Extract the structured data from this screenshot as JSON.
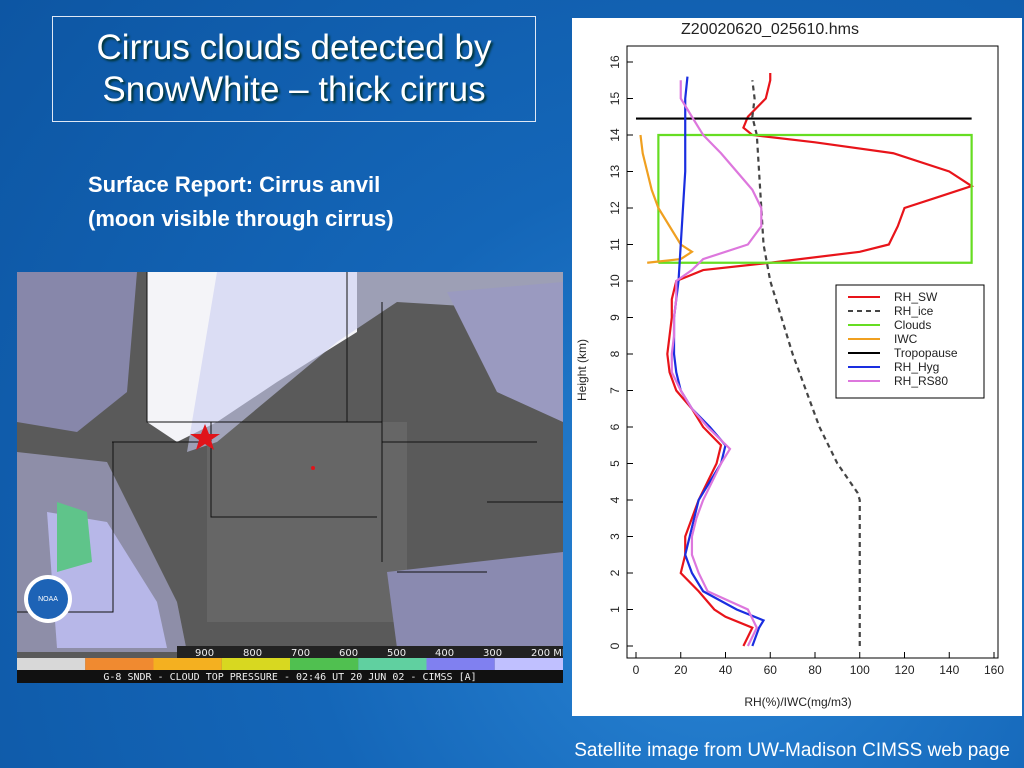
{
  "slide": {
    "title": "Cirrus clouds detected by SnowWhite – thick cirrus",
    "subtitle": [
      "Surface Report: Cirrus anvil",
      "(moon visible through cirrus)"
    ],
    "footer": "Satellite image from UW-Madison CIMSS web page"
  },
  "satellite": {
    "logo": "NOAA",
    "scale_labels": [
      "900",
      "800",
      "700",
      "600",
      "500",
      "400",
      "300",
      "200 MB"
    ],
    "scale_colors": [
      "#d8d8d8",
      "#f08a30",
      "#f4b020",
      "#d8d820",
      "#50c050",
      "#60d0a0",
      "#8080f0",
      "#c0c0ff"
    ],
    "caption": "G-8 SNDR - CLOUD TOP PRESSURE - 02:46 UT 20 JUN 02 - CIMSS [A]"
  },
  "chart_data": {
    "type": "line",
    "title": "Z20020620_025610.hms",
    "xlabel": "RH(%)/IWC(mg/m3)",
    "ylabel": "Height (km)",
    "xlim": [
      0,
      160
    ],
    "ylim": [
      0,
      16
    ],
    "xticks": [
      0,
      20,
      40,
      60,
      80,
      100,
      120,
      140,
      160
    ],
    "yticks": [
      0,
      1,
      2,
      3,
      4,
      5,
      6,
      7,
      8,
      9,
      10,
      11,
      12,
      13,
      14,
      15,
      16
    ],
    "legend": "center right",
    "series": [
      {
        "name": "RH_SW",
        "color": "#e8141a",
        "dash": false,
        "x": [
          48,
          52,
          40,
          35,
          28,
          20,
          22,
          22,
          25,
          28,
          32,
          36,
          38,
          30,
          25,
          18,
          15,
          14,
          15,
          16,
          16,
          18,
          30,
          60,
          100,
          113,
          117,
          120,
          135,
          150,
          140,
          115,
          80,
          52,
          48,
          50,
          58,
          60,
          60
        ],
        "y": [
          0,
          0.5,
          0.8,
          1,
          1.5,
          2,
          2.5,
          3,
          3.5,
          4,
          4.5,
          5,
          5.5,
          6,
          6.5,
          7,
          7.5,
          8,
          8.5,
          9,
          9.5,
          10,
          10.3,
          10.5,
          10.8,
          11,
          11.5,
          12,
          12.3,
          12.6,
          13,
          13.5,
          13.8,
          14,
          14.2,
          14.5,
          15,
          15.5,
          15.7
        ]
      },
      {
        "name": "RH_ice",
        "color": "#444444",
        "dash": true,
        "x": [
          100,
          100,
          100,
          100,
          100,
          99,
          90,
          82,
          76,
          70,
          65,
          60,
          57,
          56,
          55,
          54,
          52,
          53,
          52
        ],
        "y": [
          0,
          1,
          2,
          3,
          4,
          4.2,
          5,
          6,
          7,
          8,
          9,
          10,
          11,
          12,
          13,
          14,
          14.5,
          15,
          15.5
        ]
      },
      {
        "name": "Clouds",
        "color": "#66dd22",
        "dash": false,
        "x": [
          10,
          150,
          150,
          10,
          10
        ],
        "y": [
          10.5,
          10.5,
          14,
          14,
          10.5
        ]
      },
      {
        "name": "IWC",
        "color": "#f0a020",
        "dash": false,
        "x": [
          5,
          20,
          25,
          20,
          15,
          10,
          7,
          5,
          3,
          2
        ],
        "y": [
          10.5,
          10.6,
          10.8,
          11,
          11.5,
          12,
          12.5,
          13,
          13.5,
          14
        ]
      },
      {
        "name": "Tropopause",
        "color": "#000000",
        "dash": false,
        "x": [
          0,
          150
        ],
        "y": [
          14.45,
          14.45
        ]
      },
      {
        "name": "RH_Hyg",
        "color": "#1a2ee0",
        "dash": false,
        "x": [
          52,
          55,
          57,
          45,
          30,
          25,
          22,
          24,
          26,
          28,
          33,
          38,
          40,
          33,
          25,
          20,
          18,
          17,
          17,
          17,
          18,
          19,
          20,
          21,
          22,
          22,
          22,
          23
        ],
        "y": [
          0,
          0.5,
          0.7,
          1,
          1.5,
          2,
          2.5,
          3,
          3.5,
          4,
          4.5,
          5,
          5.5,
          6,
          6.5,
          7,
          7.5,
          8,
          8.5,
          9,
          9.5,
          10,
          11,
          12,
          13,
          14,
          15,
          15.6
        ]
      },
      {
        "name": "RH_RS80",
        "color": "#dd77dd",
        "dash": false,
        "x": [
          50,
          54,
          50,
          32,
          28,
          25,
          25,
          27,
          30,
          34,
          38,
          42,
          32,
          25,
          20,
          16,
          16,
          17,
          17,
          18,
          18,
          25,
          30,
          50,
          56,
          56,
          52,
          45,
          38,
          30,
          25,
          20,
          20
        ],
        "y": [
          0,
          0.5,
          1,
          1.5,
          2,
          2.5,
          3,
          3.5,
          4,
          4.5,
          5,
          5.4,
          6,
          6.5,
          7,
          7.5,
          8,
          8.5,
          9,
          9.5,
          10,
          10.3,
          10.6,
          11,
          11.5,
          12,
          12.5,
          13,
          13.5,
          14,
          14.5,
          15,
          15.5
        ]
      }
    ]
  }
}
